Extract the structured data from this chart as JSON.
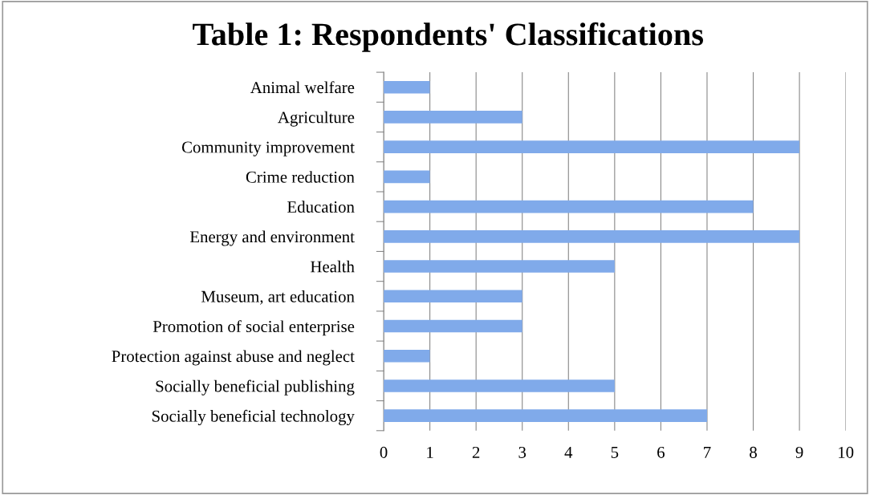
{
  "chart_data": {
    "type": "bar",
    "title": "Table 1: Respondents' Classifications",
    "orientation": "horizontal",
    "categories": [
      "Animal welfare",
      "Agriculture",
      "Community improvement",
      "Crime reduction",
      "Education",
      "Energy and environment",
      "Health",
      "Museum, art education",
      "Promotion of social enterprise",
      "Protection against abuse and neglect",
      "Socially beneficial publishing",
      "Socially beneficial technology"
    ],
    "values": [
      1,
      3,
      9,
      1,
      8,
      9,
      5,
      3,
      3,
      1,
      5,
      7
    ],
    "color": "#80aaea",
    "xlim": [
      0,
      10
    ],
    "xticks": [
      0,
      1,
      2,
      3,
      4,
      5,
      6,
      7,
      8,
      9,
      10
    ],
    "grid": "x"
  }
}
